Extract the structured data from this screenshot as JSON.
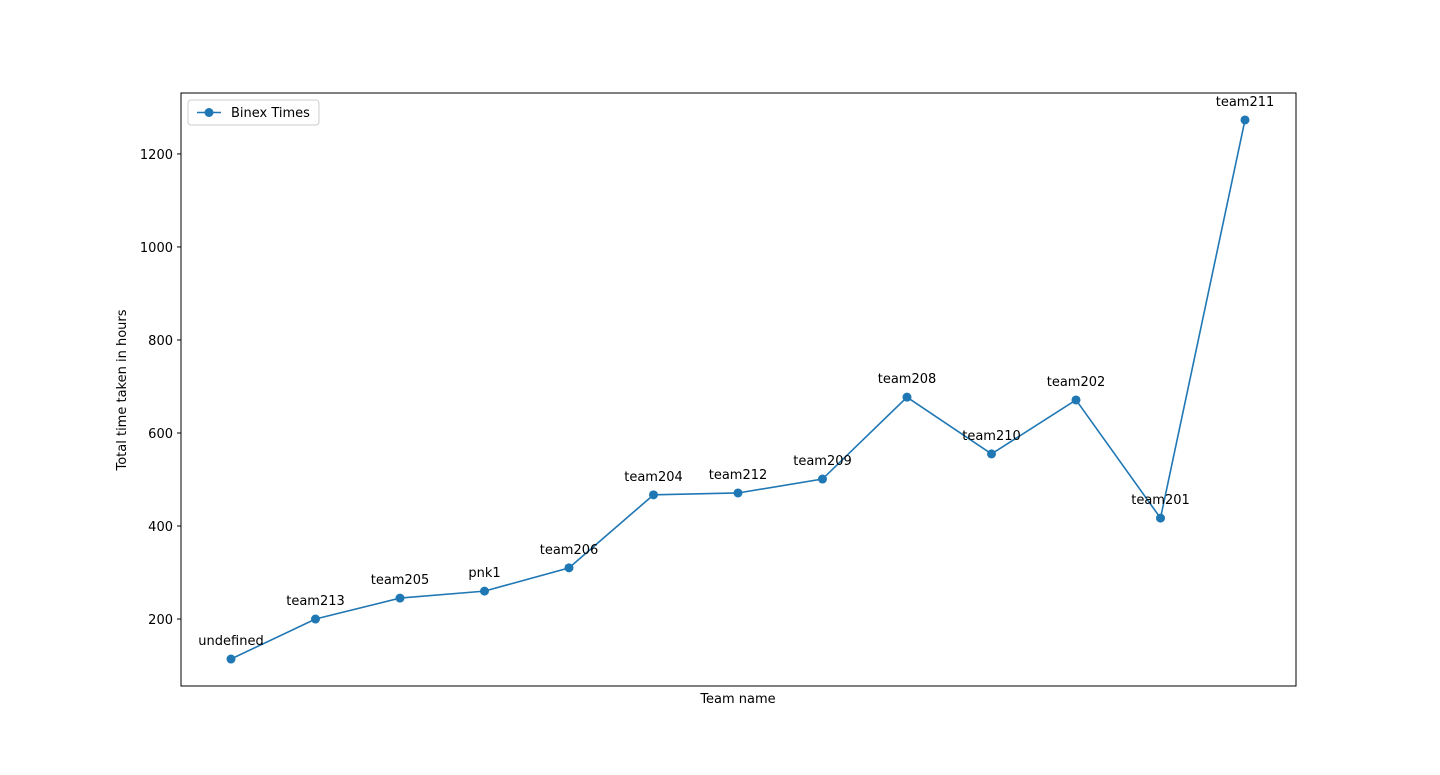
{
  "chart_data": {
    "type": "line",
    "x_label": "Team name",
    "y_label": "Total time taken in hours",
    "categories": [
      "undefined",
      "team213",
      "team205",
      "pnk1",
      "team206",
      "team204",
      "team212",
      "team209",
      "team208",
      "team210",
      "team202",
      "team201",
      "team211"
    ],
    "series": [
      {
        "name": "Binex Times",
        "color": "#1f77b4",
        "values": [
          114,
          200,
          245,
          260,
          310,
          467,
          471,
          501,
          677,
          555,
          671,
          417,
          1273
        ]
      }
    ],
    "ylim": [
      56,
      1331
    ],
    "yticks": [
      200,
      400,
      600,
      800,
      1000,
      1200
    ],
    "legend": "upper left"
  }
}
